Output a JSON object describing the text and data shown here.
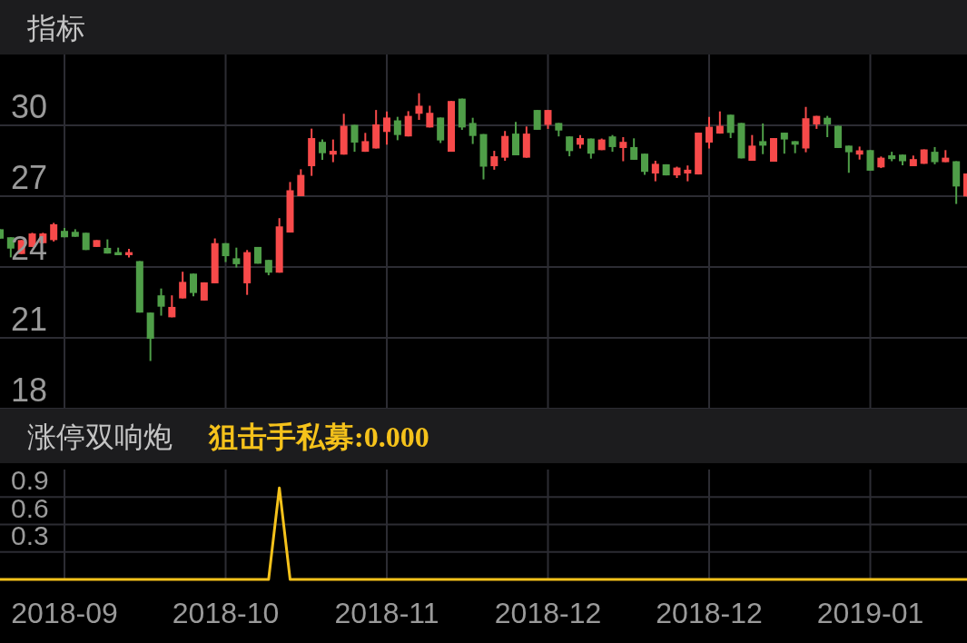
{
  "chart_data": [
    {
      "type": "candlestick",
      "title": "指标",
      "categories": [
        null,
        null,
        null,
        null,
        null,
        null,
        "2018-09",
        null,
        null,
        null,
        null,
        null,
        null,
        null,
        null,
        null,
        null,
        null,
        null,
        null,
        null,
        "2018-10",
        null,
        null,
        null,
        null,
        null,
        null,
        null,
        null,
        null,
        null,
        null,
        null,
        null,
        null,
        "2018-11",
        null,
        null,
        null,
        null,
        null,
        null,
        null,
        null,
        null,
        null,
        null,
        null,
        null,
        null,
        "2018-12",
        null,
        null,
        null,
        null,
        null,
        null,
        null,
        null,
        null,
        null,
        null,
        null,
        null,
        null,
        "2018-12",
        null,
        null,
        null,
        null,
        null,
        null,
        null,
        null,
        null,
        null,
        null,
        null,
        null,
        null,
        "2019-01",
        null,
        null,
        null,
        null,
        null,
        null,
        null,
        null,
        null
      ],
      "ohlc": [
        [
          25.6,
          25.6,
          25.2,
          25.2
        ],
        [
          25.26,
          25.26,
          24.41,
          24.78
        ],
        [
          24.55,
          25.14,
          24.55,
          25.14
        ],
        [
          24.85,
          25.45,
          24.85,
          25.42
        ],
        [
          25.01,
          25.45,
          25.0,
          25.42
        ],
        [
          25.14,
          25.87,
          25.08,
          25.81
        ],
        [
          25.53,
          25.65,
          25.26,
          25.26
        ],
        [
          25.49,
          25.6,
          25.28,
          25.28
        ],
        [
          25.45,
          25.45,
          24.72,
          24.72
        ],
        [
          24.85,
          25.14,
          24.85,
          25.14
        ],
        [
          24.81,
          25.17,
          24.57,
          24.57
        ],
        [
          24.63,
          24.82,
          24.5,
          24.5
        ],
        [
          24.5,
          24.77,
          24.4,
          24.63
        ],
        [
          24.25,
          24.25,
          22.07,
          22.07
        ],
        [
          22.07,
          22.07,
          20.02,
          20.96
        ],
        [
          22.8,
          23.09,
          21.94,
          22.32
        ],
        [
          21.87,
          22.8,
          21.87,
          22.31
        ],
        [
          22.67,
          23.8,
          22.67,
          23.37
        ],
        [
          23.72,
          23.72,
          22.76,
          22.9
        ],
        [
          22.58,
          23.35,
          22.58,
          23.35
        ],
        [
          23.31,
          25.21,
          23.31,
          25.01
        ],
        [
          25.01,
          25.01,
          24.21,
          24.46
        ],
        [
          24.37,
          24.82,
          23.98,
          24.12
        ],
        [
          23.31,
          24.72,
          22.82,
          24.63
        ],
        [
          24.85,
          24.85,
          24.14,
          24.14
        ],
        [
          24.3,
          24.3,
          23.65,
          23.76
        ],
        [
          23.76,
          26.07,
          23.76,
          25.72
        ],
        [
          25.46,
          27.6,
          25.46,
          27.25
        ],
        [
          27.0,
          28.14,
          27.0,
          27.9
        ],
        [
          28.27,
          29.86,
          27.86,
          29.46
        ],
        [
          29.3,
          29.4,
          28.54,
          28.82
        ],
        [
          28.76,
          29.4,
          28.44,
          28.92
        ],
        [
          28.76,
          30.49,
          28.76,
          29.98
        ],
        [
          30.02,
          30.02,
          28.88,
          29.27
        ],
        [
          28.88,
          29.68,
          28.88,
          29.33
        ],
        [
          29.02,
          30.65,
          29.02,
          30.04
        ],
        [
          29.72,
          30.59,
          29.18,
          30.33
        ],
        [
          30.21,
          30.36,
          29.37,
          29.59
        ],
        [
          29.53,
          30.6,
          29.53,
          30.4
        ],
        [
          30.49,
          31.36,
          30.23,
          30.83
        ],
        [
          29.91,
          30.83,
          29.91,
          30.53
        ],
        [
          30.33,
          30.33,
          29.25,
          29.36
        ],
        [
          28.88,
          31.03,
          28.88,
          31.03
        ],
        [
          31.13,
          31.13,
          29.81,
          29.91
        ],
        [
          30.1,
          30.32,
          29.21,
          29.55
        ],
        [
          29.63,
          29.63,
          27.71,
          28.25
        ],
        [
          28.27,
          28.92,
          28.12,
          28.69
        ],
        [
          28.63,
          29.76,
          28.5,
          29.55
        ],
        [
          29.65,
          30.14,
          28.73,
          28.73
        ],
        [
          28.63,
          29.95,
          28.63,
          29.65
        ],
        [
          30.65,
          30.65,
          29.81,
          29.81
        ],
        [
          30.02,
          30.65,
          29.85,
          30.65
        ],
        [
          30.1,
          30.1,
          29.53,
          29.78
        ],
        [
          29.53,
          29.53,
          28.69,
          28.91
        ],
        [
          29.18,
          29.59,
          29.02,
          29.46
        ],
        [
          29.44,
          29.44,
          28.59,
          28.8
        ],
        [
          28.95,
          29.44,
          28.95,
          29.4
        ],
        [
          29.53,
          29.59,
          28.88,
          29.08
        ],
        [
          29.04,
          29.5,
          28.48,
          29.3
        ],
        [
          29.08,
          29.45,
          28.54,
          28.54
        ],
        [
          28.8,
          28.8,
          27.9,
          28.03
        ],
        [
          27.96,
          28.5,
          27.63,
          28.37
        ],
        [
          28.35,
          28.35,
          27.88,
          27.88
        ],
        [
          27.88,
          28.25,
          27.77,
          28.21
        ],
        [
          27.96,
          28.3,
          27.63,
          28.12
        ],
        [
          27.92,
          29.69,
          27.92,
          29.69
        ],
        [
          29.27,
          30.36,
          29.02,
          29.94
        ],
        [
          29.65,
          30.59,
          29.65,
          29.98
        ],
        [
          30.45,
          30.45,
          29.46,
          29.68
        ],
        [
          30.1,
          30.1,
          28.6,
          28.6
        ],
        [
          28.5,
          29.59,
          28.5,
          29.14
        ],
        [
          29.33,
          30.08,
          28.78,
          29.14
        ],
        [
          28.46,
          29.46,
          28.46,
          29.46
        ],
        [
          29.69,
          29.69,
          28.8,
          29.4
        ],
        [
          29.33,
          29.33,
          28.82,
          29.18
        ],
        [
          29.02,
          30.78,
          28.86,
          30.3
        ],
        [
          30.04,
          30.4,
          29.85,
          30.4
        ],
        [
          30.32,
          30.4,
          29.5,
          30.04
        ],
        [
          29.98,
          29.98,
          29.04,
          29.04
        ],
        [
          29.14,
          29.14,
          27.99,
          28.86
        ],
        [
          28.76,
          29.1,
          28.55,
          28.94
        ],
        [
          28.95,
          28.95,
          28.08,
          28.08
        ],
        [
          28.22,
          28.68,
          28.19,
          28.63
        ],
        [
          28.73,
          28.88,
          28.48,
          28.57
        ],
        [
          28.76,
          28.76,
          28.31,
          28.48
        ],
        [
          28.27,
          28.72,
          28.27,
          28.57
        ],
        [
          28.37,
          28.98,
          28.37,
          28.98
        ],
        [
          28.88,
          29.08,
          28.35,
          28.44
        ],
        [
          28.44,
          28.95,
          28.44,
          28.63
        ],
        [
          28.48,
          28.48,
          26.67,
          27.41
        ],
        [
          26.99,
          27.96,
          26.99,
          27.96
        ]
      ],
      "colors": [
        "#4f9e48",
        "#4f9e48",
        "#f74a4a",
        "#f74a4a",
        "#f74a4a",
        "#f74a4a",
        "#4f9e48",
        "#4f9e48",
        "#4f9e48",
        "#f74a4a",
        "#4f9e48",
        "#4f9e48",
        "#f74a4a",
        "#4f9e48",
        "#4f9e48",
        "#4f9e48",
        "#f74a4a",
        "#f74a4a",
        "#4f9e48",
        "#f74a4a",
        "#f74a4a",
        "#4f9e48",
        "#4f9e48",
        "#f74a4a",
        "#4f9e48",
        "#4f9e48",
        "#f74a4a",
        "#f74a4a",
        "#f74a4a",
        "#f74a4a",
        "#4f9e48",
        "#f74a4a",
        "#f74a4a",
        "#4f9e48",
        "#f74a4a",
        "#f74a4a",
        "#f74a4a",
        "#4f9e48",
        "#f74a4a",
        "#f74a4a",
        "#f74a4a",
        "#4f9e48",
        "#f74a4a",
        "#4f9e48",
        "#4f9e48",
        "#4f9e48",
        "#f74a4a",
        "#f74a4a",
        "#4f9e48",
        "#f74a4a",
        "#4f9e48",
        "#f74a4a",
        "#4f9e48",
        "#4f9e48",
        "#f74a4a",
        "#4f9e48",
        "#f74a4a",
        "#4f9e48",
        "#f74a4a",
        "#4f9e48",
        "#4f9e48",
        "#f74a4a",
        "#4f9e48",
        "#f74a4a",
        "#f74a4a",
        "#f74a4a",
        "#f74a4a",
        "#f74a4a",
        "#4f9e48",
        "#4f9e48",
        "#f74a4a",
        "#4f9e48",
        "#f74a4a",
        "#4f9e48",
        "#4f9e48",
        "#f74a4a",
        "#f74a4a",
        "#4f9e48",
        "#4f9e48",
        "#4f9e48",
        "#f74a4a",
        "#4f9e48",
        "#f74a4a",
        "#4f9e48",
        "#4f9e48",
        "#f74a4a",
        "#f74a4a",
        "#4f9e48",
        "#f74a4a",
        "#4f9e48",
        "#f74a4a"
      ],
      "ylim": [
        18,
        33
      ],
      "yticks": [
        18,
        21,
        24,
        27,
        30
      ],
      "grid": true,
      "tick_labels": "y"
    },
    {
      "type": "line",
      "title": "涨停双响炮",
      "categories": [
        null,
        null,
        null,
        null,
        null,
        null,
        "2018-09",
        null,
        null,
        null,
        null,
        null,
        null,
        null,
        null,
        null,
        null,
        null,
        null,
        null,
        null,
        "2018-10",
        null,
        null,
        null,
        null,
        null,
        null,
        null,
        null,
        null,
        null,
        null,
        null,
        null,
        null,
        "2018-11",
        null,
        null,
        null,
        null,
        null,
        null,
        null,
        null,
        null,
        null,
        null,
        null,
        null,
        null,
        "2018-12",
        null,
        null,
        null,
        null,
        null,
        null,
        null,
        null,
        null,
        null,
        null,
        null,
        null,
        null,
        "2018-12",
        null,
        null,
        null,
        null,
        null,
        null,
        null,
        null,
        null,
        null,
        null,
        null,
        null,
        null,
        "2019-01",
        null,
        null,
        null,
        null,
        null,
        null,
        null,
        null,
        null
      ],
      "series": [
        {
          "name": "狙击手私募:0.000",
          "color": "#f5c21b",
          "values": [
            0,
            0,
            0,
            0,
            0,
            0,
            0,
            0,
            0,
            0,
            0,
            0,
            0,
            0,
            0,
            0,
            0,
            0,
            0,
            0,
            0,
            0,
            0,
            0,
            0,
            0,
            1,
            0,
            0,
            0,
            0,
            0,
            0,
            0,
            0,
            0,
            0,
            0,
            0,
            0,
            0,
            0,
            0,
            0,
            0,
            0,
            0,
            0,
            0,
            0,
            0,
            0,
            0,
            0,
            0,
            0,
            0,
            0,
            0,
            0,
            0,
            0,
            0,
            0,
            0,
            0,
            0,
            0,
            0,
            0,
            0,
            0,
            0,
            0,
            0,
            0,
            0,
            0,
            0,
            0,
            0,
            0,
            0,
            0,
            0,
            0,
            0,
            0,
            0,
            0,
            0
          ]
        }
      ],
      "ylim": [
        0,
        1.2
      ],
      "yticks": [
        0.3,
        0.6,
        0.9
      ],
      "grid": true
    }
  ]
}
